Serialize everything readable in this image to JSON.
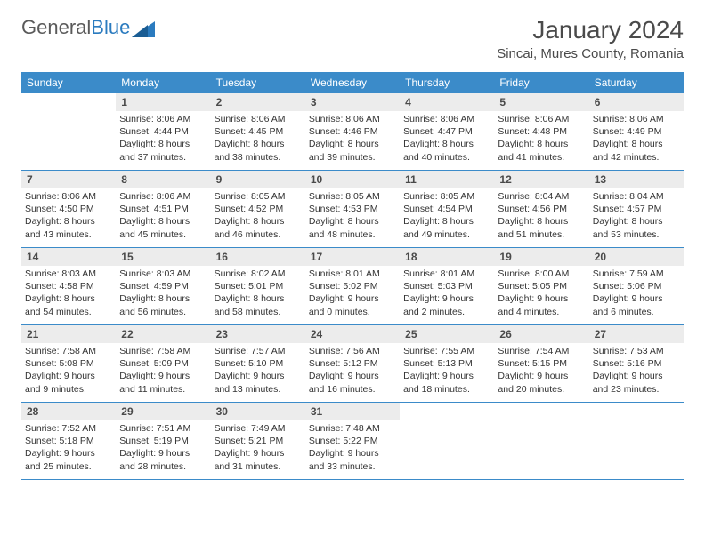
{
  "brand": {
    "word1": "General",
    "word2": "Blue"
  },
  "title": "January 2024",
  "location": "Sincai, Mures County, Romania",
  "colors": {
    "header_bg": "#3b8bc9",
    "header_text": "#ffffff",
    "daynum_bg": "#ececec",
    "accent_line": "#3b8bc9",
    "logo_gray": "#5a5a5a",
    "logo_blue": "#2b7bbf"
  },
  "day_names": [
    "Sunday",
    "Monday",
    "Tuesday",
    "Wednesday",
    "Thursday",
    "Friday",
    "Saturday"
  ],
  "weeks": [
    [
      {
        "n": "",
        "sr": "",
        "ss": "",
        "d1": "",
        "d2": ""
      },
      {
        "n": "1",
        "sr": "Sunrise: 8:06 AM",
        "ss": "Sunset: 4:44 PM",
        "d1": "Daylight: 8 hours",
        "d2": "and 37 minutes."
      },
      {
        "n": "2",
        "sr": "Sunrise: 8:06 AM",
        "ss": "Sunset: 4:45 PM",
        "d1": "Daylight: 8 hours",
        "d2": "and 38 minutes."
      },
      {
        "n": "3",
        "sr": "Sunrise: 8:06 AM",
        "ss": "Sunset: 4:46 PM",
        "d1": "Daylight: 8 hours",
        "d2": "and 39 minutes."
      },
      {
        "n": "4",
        "sr": "Sunrise: 8:06 AM",
        "ss": "Sunset: 4:47 PM",
        "d1": "Daylight: 8 hours",
        "d2": "and 40 minutes."
      },
      {
        "n": "5",
        "sr": "Sunrise: 8:06 AM",
        "ss": "Sunset: 4:48 PM",
        "d1": "Daylight: 8 hours",
        "d2": "and 41 minutes."
      },
      {
        "n": "6",
        "sr": "Sunrise: 8:06 AM",
        "ss": "Sunset: 4:49 PM",
        "d1": "Daylight: 8 hours",
        "d2": "and 42 minutes."
      }
    ],
    [
      {
        "n": "7",
        "sr": "Sunrise: 8:06 AM",
        "ss": "Sunset: 4:50 PM",
        "d1": "Daylight: 8 hours",
        "d2": "and 43 minutes."
      },
      {
        "n": "8",
        "sr": "Sunrise: 8:06 AM",
        "ss": "Sunset: 4:51 PM",
        "d1": "Daylight: 8 hours",
        "d2": "and 45 minutes."
      },
      {
        "n": "9",
        "sr": "Sunrise: 8:05 AM",
        "ss": "Sunset: 4:52 PM",
        "d1": "Daylight: 8 hours",
        "d2": "and 46 minutes."
      },
      {
        "n": "10",
        "sr": "Sunrise: 8:05 AM",
        "ss": "Sunset: 4:53 PM",
        "d1": "Daylight: 8 hours",
        "d2": "and 48 minutes."
      },
      {
        "n": "11",
        "sr": "Sunrise: 8:05 AM",
        "ss": "Sunset: 4:54 PM",
        "d1": "Daylight: 8 hours",
        "d2": "and 49 minutes."
      },
      {
        "n": "12",
        "sr": "Sunrise: 8:04 AM",
        "ss": "Sunset: 4:56 PM",
        "d1": "Daylight: 8 hours",
        "d2": "and 51 minutes."
      },
      {
        "n": "13",
        "sr": "Sunrise: 8:04 AM",
        "ss": "Sunset: 4:57 PM",
        "d1": "Daylight: 8 hours",
        "d2": "and 53 minutes."
      }
    ],
    [
      {
        "n": "14",
        "sr": "Sunrise: 8:03 AM",
        "ss": "Sunset: 4:58 PM",
        "d1": "Daylight: 8 hours",
        "d2": "and 54 minutes."
      },
      {
        "n": "15",
        "sr": "Sunrise: 8:03 AM",
        "ss": "Sunset: 4:59 PM",
        "d1": "Daylight: 8 hours",
        "d2": "and 56 minutes."
      },
      {
        "n": "16",
        "sr": "Sunrise: 8:02 AM",
        "ss": "Sunset: 5:01 PM",
        "d1": "Daylight: 8 hours",
        "d2": "and 58 minutes."
      },
      {
        "n": "17",
        "sr": "Sunrise: 8:01 AM",
        "ss": "Sunset: 5:02 PM",
        "d1": "Daylight: 9 hours",
        "d2": "and 0 minutes."
      },
      {
        "n": "18",
        "sr": "Sunrise: 8:01 AM",
        "ss": "Sunset: 5:03 PM",
        "d1": "Daylight: 9 hours",
        "d2": "and 2 minutes."
      },
      {
        "n": "19",
        "sr": "Sunrise: 8:00 AM",
        "ss": "Sunset: 5:05 PM",
        "d1": "Daylight: 9 hours",
        "d2": "and 4 minutes."
      },
      {
        "n": "20",
        "sr": "Sunrise: 7:59 AM",
        "ss": "Sunset: 5:06 PM",
        "d1": "Daylight: 9 hours",
        "d2": "and 6 minutes."
      }
    ],
    [
      {
        "n": "21",
        "sr": "Sunrise: 7:58 AM",
        "ss": "Sunset: 5:08 PM",
        "d1": "Daylight: 9 hours",
        "d2": "and 9 minutes."
      },
      {
        "n": "22",
        "sr": "Sunrise: 7:58 AM",
        "ss": "Sunset: 5:09 PM",
        "d1": "Daylight: 9 hours",
        "d2": "and 11 minutes."
      },
      {
        "n": "23",
        "sr": "Sunrise: 7:57 AM",
        "ss": "Sunset: 5:10 PM",
        "d1": "Daylight: 9 hours",
        "d2": "and 13 minutes."
      },
      {
        "n": "24",
        "sr": "Sunrise: 7:56 AM",
        "ss": "Sunset: 5:12 PM",
        "d1": "Daylight: 9 hours",
        "d2": "and 16 minutes."
      },
      {
        "n": "25",
        "sr": "Sunrise: 7:55 AM",
        "ss": "Sunset: 5:13 PM",
        "d1": "Daylight: 9 hours",
        "d2": "and 18 minutes."
      },
      {
        "n": "26",
        "sr": "Sunrise: 7:54 AM",
        "ss": "Sunset: 5:15 PM",
        "d1": "Daylight: 9 hours",
        "d2": "and 20 minutes."
      },
      {
        "n": "27",
        "sr": "Sunrise: 7:53 AM",
        "ss": "Sunset: 5:16 PM",
        "d1": "Daylight: 9 hours",
        "d2": "and 23 minutes."
      }
    ],
    [
      {
        "n": "28",
        "sr": "Sunrise: 7:52 AM",
        "ss": "Sunset: 5:18 PM",
        "d1": "Daylight: 9 hours",
        "d2": "and 25 minutes."
      },
      {
        "n": "29",
        "sr": "Sunrise: 7:51 AM",
        "ss": "Sunset: 5:19 PM",
        "d1": "Daylight: 9 hours",
        "d2": "and 28 minutes."
      },
      {
        "n": "30",
        "sr": "Sunrise: 7:49 AM",
        "ss": "Sunset: 5:21 PM",
        "d1": "Daylight: 9 hours",
        "d2": "and 31 minutes."
      },
      {
        "n": "31",
        "sr": "Sunrise: 7:48 AM",
        "ss": "Sunset: 5:22 PM",
        "d1": "Daylight: 9 hours",
        "d2": "and 33 minutes."
      },
      {
        "n": "",
        "sr": "",
        "ss": "",
        "d1": "",
        "d2": ""
      },
      {
        "n": "",
        "sr": "",
        "ss": "",
        "d1": "",
        "d2": ""
      },
      {
        "n": "",
        "sr": "",
        "ss": "",
        "d1": "",
        "d2": ""
      }
    ]
  ]
}
